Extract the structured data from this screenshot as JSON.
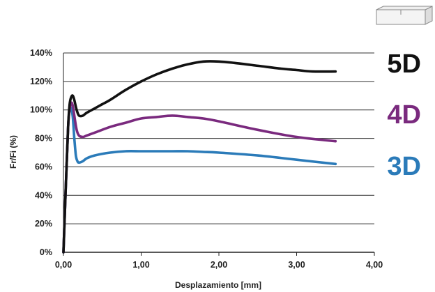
{
  "chart_data": {
    "type": "line",
    "title": "",
    "xlabel": "Desplazamiento [mm]",
    "ylabel": "Fr/Fi (%)",
    "xlim": [
      0,
      4
    ],
    "ylim": [
      0,
      140
    ],
    "x_ticks": [
      0,
      1,
      2,
      3,
      4
    ],
    "x_tick_labels": [
      "0,00",
      "1,00",
      "2,00",
      "3,00",
      "4,00"
    ],
    "y_ticks": [
      0,
      20,
      40,
      60,
      80,
      100,
      120,
      140
    ],
    "y_tick_labels": [
      "0%",
      "20%",
      "40%",
      "60%",
      "80%",
      "100%",
      "120%",
      "140%"
    ],
    "grid": "horizontal",
    "legend": "right",
    "series": [
      {
        "name": "5D",
        "color": "#111111",
        "x": [
          0,
          0.03,
          0.06,
          0.08,
          0.1,
          0.12,
          0.14,
          0.17,
          0.2,
          0.25,
          0.3,
          0.4,
          0.5,
          0.6,
          0.8,
          1.0,
          1.2,
          1.4,
          1.6,
          1.8,
          2.0,
          2.2,
          2.5,
          2.8,
          3.0,
          3.2,
          3.5
        ],
        "y": [
          0,
          45,
          88,
          104,
          109,
          110,
          107,
          100,
          96,
          96,
          98,
          101,
          104,
          107,
          114,
          120,
          125,
          129,
          132,
          134,
          134,
          133,
          131,
          129,
          128,
          127,
          127
        ]
      },
      {
        "name": "4D",
        "color": "#7a2a7e",
        "x": [
          0,
          0.03,
          0.06,
          0.08,
          0.1,
          0.12,
          0.14,
          0.17,
          0.2,
          0.25,
          0.3,
          0.4,
          0.6,
          0.8,
          1.0,
          1.2,
          1.4,
          1.6,
          1.8,
          2.0,
          2.5,
          3.0,
          3.5
        ],
        "y": [
          0,
          45,
          88,
          100,
          105,
          103,
          96,
          86,
          82,
          81,
          82,
          84,
          88,
          91,
          94,
          95,
          96,
          95,
          94,
          92,
          86,
          81,
          78
        ]
      },
      {
        "name": "3D",
        "color": "#2b7bb9",
        "x": [
          0,
          0.03,
          0.06,
          0.08,
          0.1,
          0.12,
          0.14,
          0.16,
          0.18,
          0.2,
          0.25,
          0.3,
          0.4,
          0.6,
          0.8,
          1.0,
          1.2,
          1.4,
          1.6,
          1.8,
          2.0,
          2.5,
          3.0,
          3.5
        ],
        "y": [
          0,
          45,
          88,
          100,
          101,
          95,
          80,
          68,
          64,
          63,
          64,
          66,
          68,
          70,
          71,
          71,
          71,
          71,
          71,
          70.5,
          70,
          68,
          65,
          62
        ]
      }
    ]
  }
}
